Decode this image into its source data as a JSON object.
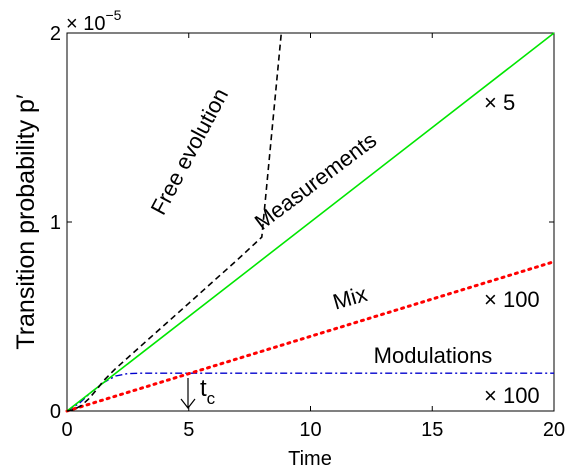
{
  "chart_data": {
    "type": "line",
    "xlabel": "Time",
    "ylabel": "Transition probability p′",
    "xlim": [
      0,
      20
    ],
    "ylim": [
      0,
      2
    ],
    "y_multiplier": {
      "base": "10",
      "exponent": "−5",
      "prefix": "× "
    },
    "x_ticks": [
      0,
      5,
      10,
      15,
      20
    ],
    "y_ticks": [
      0,
      1,
      2
    ],
    "x_tick_labels": [
      "0",
      "5",
      "10",
      "15",
      "20"
    ],
    "y_tick_labels": [
      "0",
      "1",
      "2"
    ],
    "grid": false,
    "series": [
      {
        "label": "Free evolution",
        "style": "dashed",
        "color": "#000000",
        "x": [
          0,
          0.3,
          0.6,
          0.9,
          1.2,
          1.5,
          2,
          3,
          4,
          5,
          6,
          7,
          8,
          8.8
        ],
        "y": [
          0,
          0.008,
          0.03,
          0.065,
          0.11,
          0.16,
          0.225,
          0.34,
          0.455,
          0.57,
          0.685,
          0.8,
          0.92,
          2.0
        ]
      },
      {
        "label": "Measurements",
        "style": "solid",
        "color": "#00e600",
        "x": [
          0,
          20
        ],
        "y": [
          0,
          2.0
        ]
      },
      {
        "label": "Mix",
        "style": "dotted",
        "color": "#ff0000",
        "x": [
          0,
          20
        ],
        "y": [
          0,
          0.79
        ]
      },
      {
        "label": "Modulations",
        "style": "dashdot",
        "color": "#0000cc",
        "x": [
          0,
          0.5,
          1.0,
          1.5,
          2.0,
          2.5,
          3.0,
          5,
          10,
          15,
          20
        ],
        "y": [
          0,
          0.04,
          0.1,
          0.15,
          0.185,
          0.198,
          0.2,
          0.2,
          0.2,
          0.2,
          0.2
        ]
      }
    ],
    "annotations": [
      {
        "text": "× 5",
        "x": 17.7,
        "y": 1.63
      },
      {
        "text": "× 100",
        "x": 18.4,
        "y": 0.57
      },
      {
        "text": "× 100",
        "x": 18.4,
        "y": 0.07
      },
      {
        "text": "t",
        "sub": "c",
        "x": 5.4,
        "y": 0.12,
        "arrow_x": 5.0
      }
    ]
  }
}
